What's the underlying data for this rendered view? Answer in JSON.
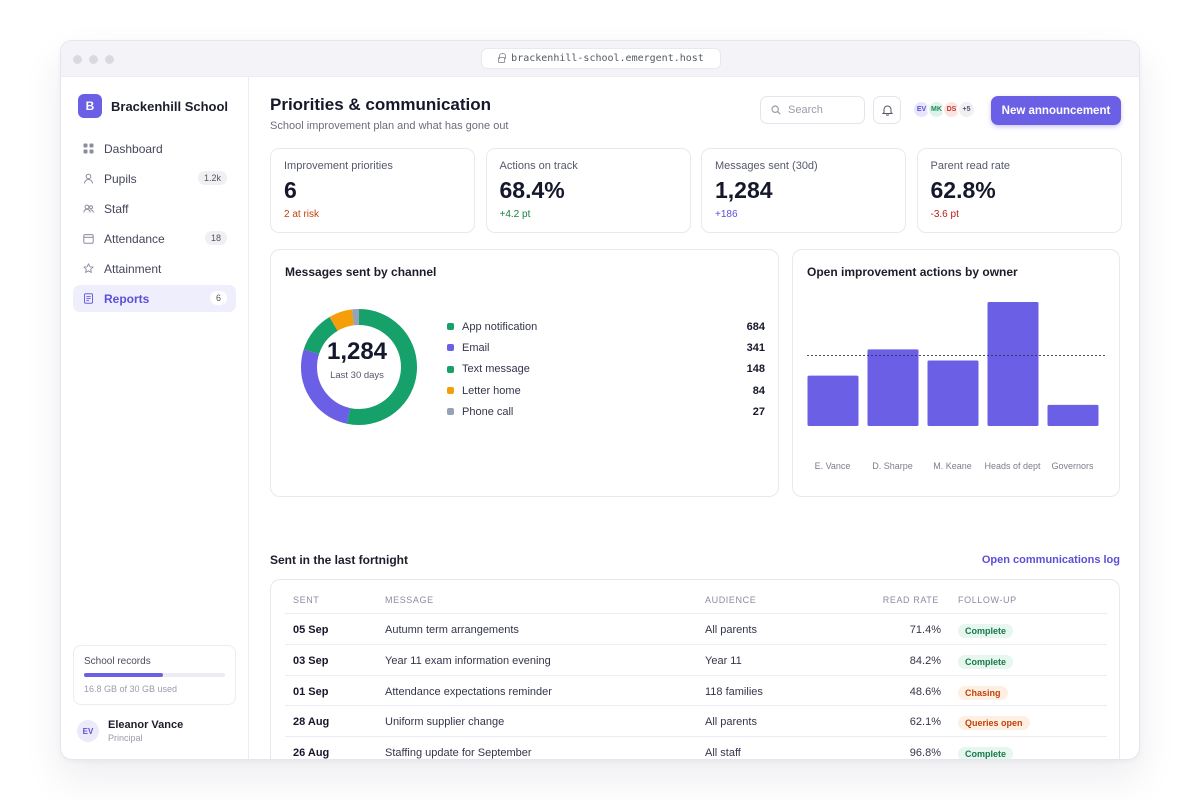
{
  "browser": {
    "url": "brackenhill-school.emergent.host"
  },
  "sidebar": {
    "brand_initial": "B",
    "brand_name": "Brackenhill School",
    "items": [
      {
        "label": "Dashboard",
        "icon": "grid-icon",
        "badge": ""
      },
      {
        "label": "Pupils",
        "icon": "user-icon",
        "badge": "1.2k"
      },
      {
        "label": "Staff",
        "icon": "users-icon",
        "badge": ""
      },
      {
        "label": "Attendance",
        "icon": "calendar-icon",
        "badge": "18"
      },
      {
        "label": "Attainment",
        "icon": "star-icon",
        "badge": ""
      },
      {
        "label": "Reports",
        "icon": "document-icon",
        "badge": "6",
        "active": true
      }
    ],
    "storage": {
      "title": "School records",
      "used_fraction": 0.56,
      "note": "16.8 GB of 30 GB used"
    },
    "user": {
      "initials": "EV",
      "name": "Eleanor Vance",
      "role": "Principal"
    }
  },
  "header": {
    "title": "Priorities & communication",
    "subtitle": "School improvement plan and what has gone out",
    "search_placeholder": "Search",
    "avatars": [
      {
        "initials": "EV",
        "bg": "#e6e5fb",
        "fg": "#5b4fd8"
      },
      {
        "initials": "MK",
        "bg": "#dff3ea",
        "fg": "#1a8a5c"
      },
      {
        "initials": "DS",
        "bg": "#fbe4e4",
        "fg": "#c0392b"
      },
      {
        "initials": "+5",
        "bg": "#f0f0f4",
        "fg": "#555869"
      }
    ],
    "primary_button": "New announcement"
  },
  "kpis": [
    {
      "label": "Improvement priorities",
      "value": "6",
      "delta": "2 at risk",
      "delta_color": "#c2410c"
    },
    {
      "label": "Actions on track",
      "value": "68.4%",
      "delta": "+4.2 pt",
      "delta_color": "#15803d"
    },
    {
      "label": "Messages sent (30d)",
      "value": "1,284",
      "delta": "+186",
      "delta_color": "#5b4fd8"
    },
    {
      "label": "Parent read rate",
      "value": "62.8%",
      "delta": "-3.6 pt",
      "delta_color": "#b91c1c"
    }
  ],
  "colors": {
    "accent": "#6b5fe6",
    "green": "#16a06a",
    "orange": "#f59e0b",
    "gray": "#94a3b8"
  },
  "chart_data": [
    {
      "type": "pie",
      "title": "Messages sent by channel",
      "center_value": "1,284",
      "center_label": "Last 30 days",
      "categories": [
        "App notification",
        "Email",
        "Text message",
        "Letter home",
        "Phone call"
      ],
      "values": [
        684,
        341,
        148,
        84,
        27
      ],
      "value_labels": [
        "684",
        "341",
        "148",
        "84",
        "27"
      ],
      "colors": [
        "#16a06a",
        "#6b5fe6",
        "#16a06a",
        "#f59e0b",
        "#94a3b8"
      ]
    },
    {
      "type": "bar",
      "title": "Open improvement actions by owner",
      "categories": [
        "E. Vance",
        "D. Sharpe",
        "M. Keane",
        "Heads of dept",
        "Governors"
      ],
      "values": [
        10,
        15.2,
        13,
        24.6,
        4.2
      ],
      "reference_line": 14,
      "ylim": [
        0,
        25
      ],
      "grid": false,
      "color": "#6b5fe6"
    }
  ],
  "table": {
    "title": "Sent in the last fortnight",
    "link": "Open communications log",
    "columns": [
      "SENT",
      "MESSAGE",
      "AUDIENCE",
      "READ RATE",
      "FOLLOW-UP"
    ],
    "rows": [
      {
        "sent": "05 Sep",
        "message": "Autumn term arrangements",
        "audience": "All parents",
        "read_rate": "71.4%",
        "follow_up": "Complete",
        "status": "complete"
      },
      {
        "sent": "03 Sep",
        "message": "Year 11 exam information evening",
        "audience": "Year 11",
        "read_rate": "84.2%",
        "follow_up": "Complete",
        "status": "complete"
      },
      {
        "sent": "01 Sep",
        "message": "Attendance expectations reminder",
        "audience": "118 families",
        "read_rate": "48.6%",
        "follow_up": "Chasing",
        "status": "warning"
      },
      {
        "sent": "28 Aug",
        "message": "Uniform supplier change",
        "audience": "All parents",
        "read_rate": "62.1%",
        "follow_up": "Queries open",
        "status": "warning"
      },
      {
        "sent": "26 Aug",
        "message": "Staffing update for September",
        "audience": "All staff",
        "read_rate": "96.8%",
        "follow_up": "Complete",
        "status": "complete"
      }
    ]
  }
}
